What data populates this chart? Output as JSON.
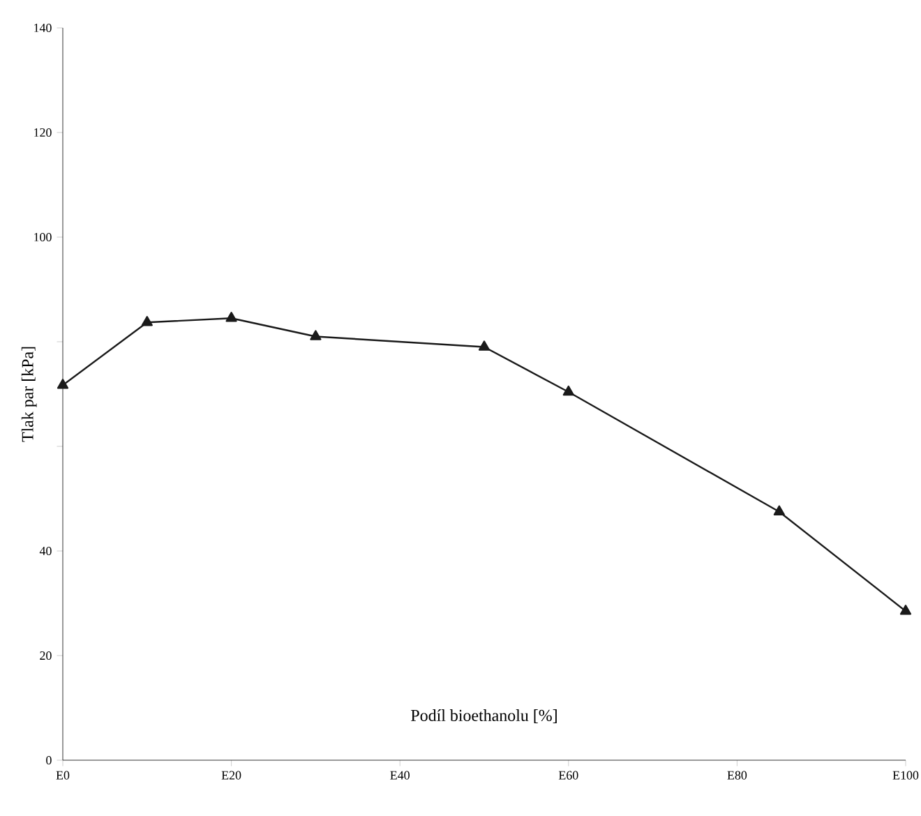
{
  "chart_data": {
    "type": "line",
    "xlabel": "Podíl bioethanolu [%]",
    "ylabel": "Tlak par [kPa]",
    "categories": [
      "E0",
      null,
      null,
      null,
      "E20",
      null,
      null,
      null,
      "E40",
      null,
      null,
      null,
      "E60",
      null,
      null,
      null,
      "E80",
      null,
      null,
      null,
      "E100"
    ],
    "values": [
      71.7,
      null,
      83.7,
      null,
      84.5,
      null,
      81,
      null,
      null,
      null,
      79,
      null,
      70.4,
      null,
      null,
      null,
      null,
      47.5,
      null,
      null,
      28.5
    ],
    "color": "#1a1a1a",
    "marker": "triangle",
    "line_style": "solid",
    "ylim": [
      0,
      140
    ],
    "yticks": [
      0,
      20,
      40,
      {
        "value": 60,
        "label": null
      },
      {
        "value": 80,
        "label": null
      },
      100,
      120,
      140
    ]
  }
}
